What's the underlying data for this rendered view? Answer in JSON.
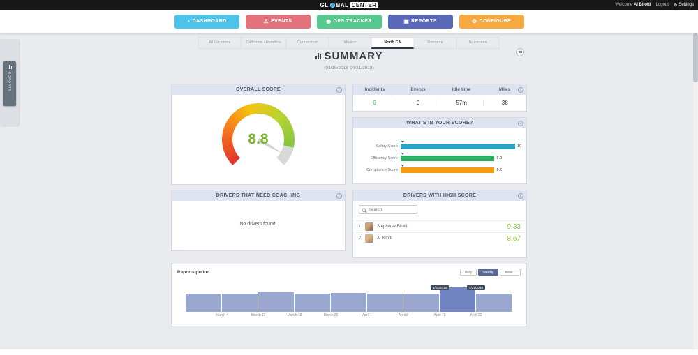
{
  "icons": {
    "info": "i",
    "settings": "⚙"
  },
  "header": {
    "logo": {
      "prefix": "GL",
      "middle": "BAL",
      "suffix": "CENTER"
    },
    "welcome": "Welcome",
    "user": "Al Bilotti",
    "logout": "Logout",
    "settings": "Settings"
  },
  "nav": {
    "buttons": [
      {
        "label": "DASHBOARD",
        "icon": "◔",
        "color": "#4ec3ea"
      },
      {
        "label": "EVENTS",
        "icon": "⚠",
        "color": "#e2737c"
      },
      {
        "label": "GPS TRACKER",
        "icon": "◉",
        "color": "#58c98e"
      },
      {
        "label": "REPORTS",
        "icon": "▣",
        "color": "#5a68b8"
      },
      {
        "label": "CONFIGURE",
        "icon": "⚙",
        "color": "#f7a941"
      }
    ]
  },
  "tabs": [
    "All Locations",
    "California - Hamilton",
    "Connecticut",
    "Mexico",
    "North CA",
    "Romania",
    "Tennessee"
  ],
  "active_tab": "North CA",
  "side_tab": {
    "label": "REPORTS"
  },
  "page": {
    "title": "SUMMARY",
    "subtitle": "(04/15/2018-04/21/2018)"
  },
  "overall_score": {
    "title": "OVERALL SCORE",
    "value": 8.8,
    "max": 10,
    "gauge_colors": [
      "#e2342c",
      "#f5721f",
      "#f6c20f",
      "#b8d431",
      "#86c440"
    ],
    "rest_color": "#d8d8d8",
    "value_color": "#7ab62c"
  },
  "stats": {
    "columns": [
      "Incidents",
      "Events",
      "Idle time",
      "Miles"
    ],
    "values": [
      {
        "text": "0",
        "color": "#3bb54a"
      },
      {
        "text": "0"
      },
      {
        "text": "57m"
      },
      {
        "text": "38"
      }
    ]
  },
  "score_breakdown": {
    "title": "WHAT'S IN YOUR SCORE?",
    "chart_data": {
      "type": "bar",
      "orientation": "horizontal",
      "max": 10,
      "categories": [
        "Safety Score",
        "Efficiency Score",
        "Compliance Score"
      ],
      "values": [
        10,
        8.2,
        8.2
      ],
      "labels": [
        "10",
        "8.2",
        "8.2"
      ],
      "colors": [
        "#2f9fc4",
        "#27ae60",
        "#f39c12"
      ]
    }
  },
  "coaching": {
    "title": "DRIVERS THAT NEED COACHING",
    "empty_message": "No drivers found!"
  },
  "high_score": {
    "title": "DRIVERS WITH HIGH SCORE",
    "search_placeholder": "Search",
    "score_color": "#8dc63f",
    "drivers": [
      {
        "rank": "1",
        "name": "Stephanie Bilotti",
        "score": "9.33"
      },
      {
        "rank": "2",
        "name": "Al Bilotti",
        "score": "8.67"
      }
    ]
  },
  "reports_period": {
    "title": "Reports period",
    "buttons": [
      "daily",
      "weekly",
      "more..."
    ],
    "active_button": "weekly",
    "chart_data": {
      "type": "bar",
      "categories": [
        "March 4",
        "March 11",
        "March 18",
        "March 25",
        "April 1",
        "April 8",
        "April 15",
        "April 22"
      ],
      "values": [
        26,
        26,
        28,
        26,
        27,
        26,
        26,
        35,
        26
      ],
      "selected_index": 7,
      "bar_color": "#9aa7cf",
      "selected_color": "#7185c2",
      "tooltips": [
        {
          "label": "4/15/2018",
          "boundary": 7
        },
        {
          "label": "4/21/2018",
          "boundary": 8
        }
      ]
    }
  }
}
